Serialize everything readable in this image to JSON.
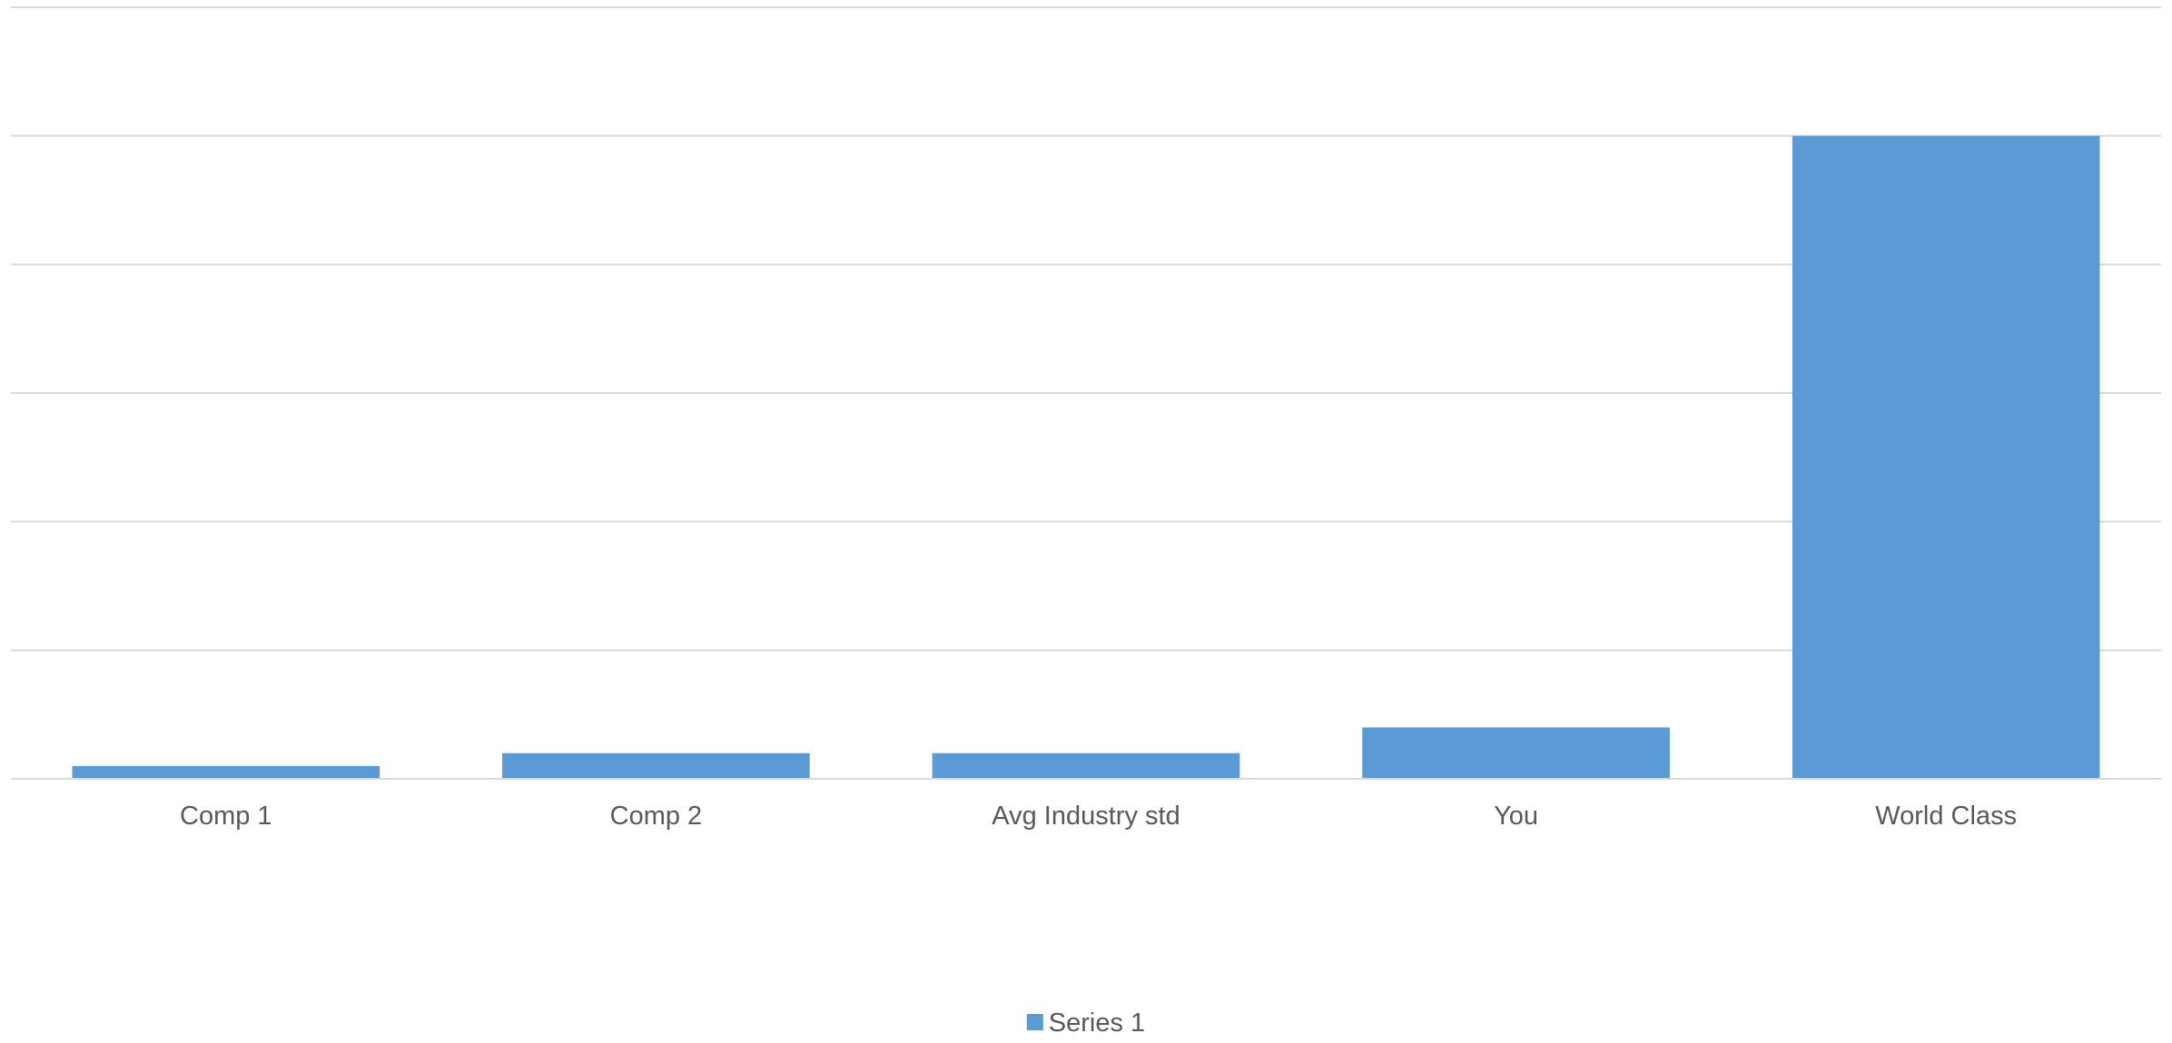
{
  "chart_data": {
    "type": "bar",
    "categories": [
      "Comp 1",
      "Comp 2",
      "Avg Industry std",
      "You",
      "World Class"
    ],
    "series": [
      {
        "name": "Series 1",
        "values": [
          0.1,
          0.2,
          0.2,
          0.4,
          5
        ],
        "color": "#5b9bd5"
      }
    ],
    "ylim": [
      0,
      6
    ],
    "grid": true,
    "legend_position": "bottom",
    "title": "",
    "xlabel": "",
    "ylabel": ""
  }
}
